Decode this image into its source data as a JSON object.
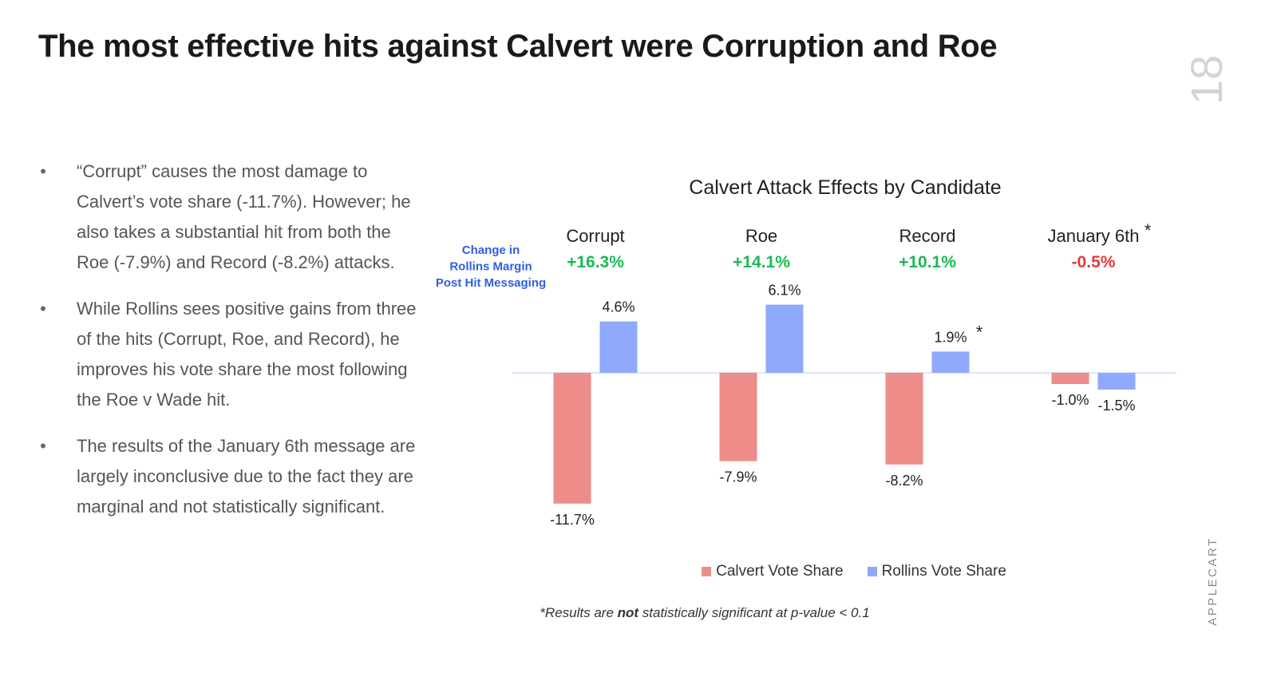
{
  "page": {
    "title": "The most effective hits against Calvert were Corruption and Roe",
    "page_number": "18",
    "brand": "APPLECART"
  },
  "bullets": [
    "“Corrupt” causes the most damage to Calvert’s vote share (-11.7%). However; he also takes a substantial hit from both the Roe (-7.9%) and Record (-8.2%) attacks.",
    "While Rollins sees positive gains from three of the hits (Corrupt, Roe, and Record), he improves his vote share the most following the Roe v Wade hit.",
    "The results of the January 6th message are largely inconclusive due to the fact they are marginal and not statistically significant."
  ],
  "bullet_char": "•",
  "colors": {
    "calvert": "#ee8c8a",
    "rollins": "#8faafc",
    "positive": "#1db954",
    "negative": "#e23b3b",
    "margin_label": "#2f5fe0",
    "baseline": "#dde5f7"
  },
  "chart_data": {
    "type": "bar",
    "title": "Calvert Attack Effects by Candidate",
    "categories": [
      "Corrupt",
      "Roe",
      "Record",
      "January 6th"
    ],
    "category_markers": [
      "",
      "",
      "",
      "*"
    ],
    "series": [
      {
        "name": "Calvert Vote Share",
        "values": [
          -11.7,
          -7.9,
          -8.2,
          -1.0
        ],
        "labels": [
          "-11.7%",
          "-7.9%",
          "-8.2%",
          "-1.0%"
        ]
      },
      {
        "name": "Rollins Vote Share",
        "values": [
          4.6,
          6.1,
          1.9,
          -1.5
        ],
        "labels": [
          "4.6%",
          "6.1%",
          "1.9%",
          "-1.5%"
        ],
        "label_markers": [
          "",
          "",
          "*",
          ""
        ]
      }
    ],
    "margin_heading": [
      "Change in",
      "Rollins Margin",
      "Post Hit Messaging"
    ],
    "margins": [
      "+16.3%",
      "+14.1%",
      "+10.1%",
      "-0.5%"
    ],
    "legend": "bottom-center",
    "ylim": [
      -11.7,
      6.1
    ],
    "grid": false
  },
  "footnote": {
    "prefix": "*Results are ",
    "bold": "not",
    "suffix": " statistically significant at p-value < 0.1"
  }
}
